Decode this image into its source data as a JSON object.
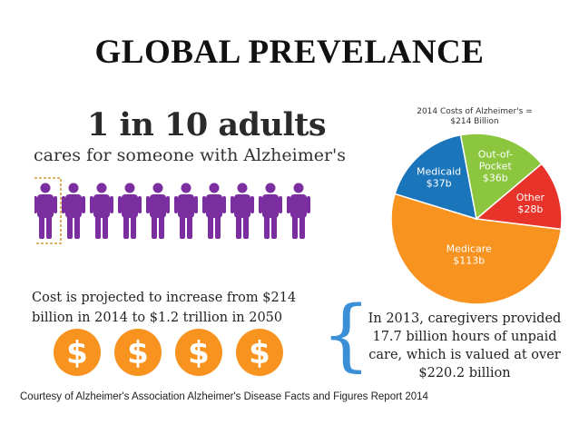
{
  "slide": {
    "title": "GLOBAL PREVELANCE"
  },
  "stat": {
    "headline": "1 in 10 adults",
    "subline": "cares for someone with Alzheimer's",
    "people_total": 10,
    "people_highlighted": 1
  },
  "cost": {
    "text": "Cost is projected to increase from $214 billion in 2014 to $1.2 trillion in 2050",
    "coin_symbol": "$",
    "coin_count": 4
  },
  "caregivers": {
    "brace": "{",
    "text": "In 2013, caregivers provided 17.7 billion hours of unpaid care, which is valued at over $220.2 billion"
  },
  "credit": "Courtesy of Alzheimer's Association Alzheimer's Disease Facts and Figures Report 2014",
  "colors": {
    "purple": "#7a2ea0",
    "orange": "#f7931e",
    "blue": "#1a75bb",
    "green": "#8cc63f",
    "red": "#e8332a",
    "highlight_box": "#d49b3a"
  },
  "chart_data": {
    "type": "pie",
    "title": "2014 Costs of Alzheimer's = $214 Billion",
    "slices": [
      {
        "label": "Medicare",
        "value_label": "$113b",
        "value": 113,
        "color": "#f7931e"
      },
      {
        "label": "Medicaid",
        "value_label": "$37b",
        "value": 37,
        "color": "#1a75bb"
      },
      {
        "label": "Out-of-Pocket",
        "value_label": "$36b",
        "value": 36,
        "color": "#8cc63f"
      },
      {
        "label": "Other",
        "value_label": "$28b",
        "value": 28,
        "color": "#e8332a"
      }
    ]
  }
}
